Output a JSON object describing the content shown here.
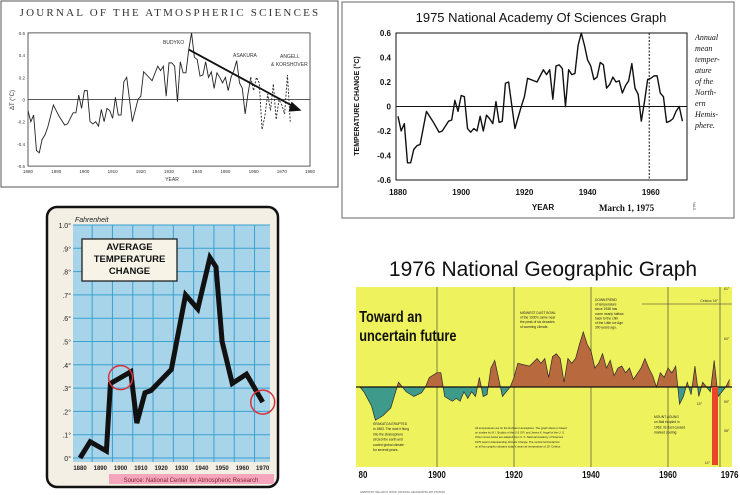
{
  "chart_data": [
    {
      "type": "line",
      "title": "JOURNAL OF THE ATMOSPHERIC SCIENCES",
      "xlabel": "YEAR",
      "ylabel": "ΔT (°C)",
      "xlim": [
        1880,
        1980
      ],
      "ylim": [
        -0.6,
        0.6
      ],
      "xticks": [
        "1880",
        "1890",
        "1900",
        "1910",
        "1920",
        "1930",
        "1940",
        "1950",
        "1960",
        "1970",
        "1980"
      ],
      "yticks": [
        "0.6",
        "0.4",
        "0.2",
        "0",
        "-0.2",
        "-0.4",
        "-0.6"
      ],
      "grid": false,
      "annotations": [
        "BUDYKO",
        "ASAKURA",
        "ANGELL",
        "& KORSHOVER"
      ],
      "trend_arrow": {
        "from": [
          1937,
          0.45
        ],
        "to": [
          1977,
          -0.1
        ]
      },
      "series": [
        {
          "style": "solid",
          "x": [
            1880,
            1881,
            1882,
            1883,
            1884,
            1885,
            1886,
            1887,
            1889,
            1891,
            1893,
            1894,
            1896,
            1897,
            1898,
            1899,
            1900,
            1901,
            1902,
            1903,
            1904,
            1905,
            1906,
            1907,
            1908,
            1909,
            1910,
            1911,
            1912,
            1913,
            1914,
            1915,
            1917,
            1919,
            1920,
            1921,
            1924,
            1926,
            1927,
            1928,
            1929,
            1930,
            1931,
            1932,
            1933,
            1934,
            1935,
            1936,
            1937,
            1938,
            1939,
            1940,
            1941,
            1942,
            1943,
            1944,
            1945,
            1946,
            1947,
            1948,
            1949,
            1950,
            1951,
            1952,
            1953,
            1954,
            1955,
            1956,
            1957,
            1958,
            1959
          ],
          "y": [
            -0.1,
            -0.2,
            -0.14,
            -0.46,
            -0.48,
            -0.36,
            -0.32,
            -0.25,
            -0.05,
            -0.15,
            -0.23,
            -0.22,
            -0.12,
            -0.12,
            0.04,
            -0.08,
            0.08,
            0.08,
            -0.2,
            -0.22,
            -0.2,
            -0.24,
            -0.09,
            -0.2,
            -0.08,
            -0.1,
            -0.17,
            0.02,
            -0.14,
            -0.14,
            0.16,
            0.2,
            -0.2,
            0.0,
            0.03,
            0.25,
            0.17,
            0.3,
            0.26,
            0.3,
            0.03,
            0.33,
            0.33,
            0.3,
            -0.02,
            0.34,
            0.24,
            0.24,
            0.45,
            0.6,
            0.38,
            0.36,
            0.21,
            0.22,
            0.34,
            0.2,
            0.25,
            0.1,
            0.24,
            0.2,
            0.15,
            0.2,
            0.08,
            0.2,
            0.26,
            0.35,
            0.15,
            0.1,
            -0.13,
            0.05,
            0.2
          ]
        },
        {
          "style": "dashed",
          "x": [
            1959,
            1960,
            1961,
            1962,
            1963,
            1964,
            1965,
            1966,
            1967,
            1968,
            1969,
            1970,
            1971,
            1972,
            1973
          ],
          "y": [
            0.2,
            0.08,
            0.2,
            0.15,
            -0.27,
            -0.15,
            0.05,
            -0.1,
            0.14,
            -0.18,
            0.0,
            -0.05,
            -0.13,
            0.22,
            -0.2
          ]
        }
      ]
    },
    {
      "type": "line",
      "title": "1975 National Academy Of Sciences Graph",
      "xlabel": "YEAR",
      "ylabel": "TEMPERATURE CHANGE (°C)",
      "xlim": [
        1880,
        1970
      ],
      "ylim": [
        -0.6,
        0.6
      ],
      "xticks": [
        "1880",
        "1900",
        "1920",
        "1940",
        "1960"
      ],
      "yticks": [
        "0.6",
        "0.4",
        "0.2",
        "0",
        "-0.2",
        "-0.4",
        "-0.6"
      ],
      "grid": false,
      "side_note": [
        "Annual",
        "mean",
        "temper-",
        "ature",
        "of the",
        "North-",
        "ern",
        "Hemis-",
        "phere."
      ],
      "date_note": "March 1, 1975",
      "credit": "NAS",
      "marker_line_year": 1959.5,
      "series": [
        {
          "x": [
            1880,
            1881,
            1882,
            1883,
            1884,
            1885,
            1886,
            1887,
            1889,
            1891,
            1893,
            1894,
            1896,
            1897,
            1898,
            1899,
            1900,
            1901,
            1902,
            1903,
            1904,
            1905,
            1906,
            1907,
            1908,
            1909,
            1910,
            1911,
            1912,
            1913,
            1914,
            1915,
            1917,
            1919,
            1920,
            1921,
            1924,
            1926,
            1927,
            1928,
            1929,
            1930,
            1931,
            1932,
            1933,
            1934,
            1935,
            1936,
            1937,
            1938,
            1939,
            1940,
            1941,
            1942,
            1943,
            1944,
            1945,
            1946,
            1947,
            1948,
            1949,
            1950,
            1951,
            1952,
            1953,
            1954,
            1955,
            1956,
            1957,
            1958,
            1959,
            1960,
            1961,
            1962,
            1963,
            1964,
            1965,
            1966,
            1967,
            1968,
            1969,
            1970
          ],
          "y": [
            -0.08,
            -0.2,
            -0.14,
            -0.46,
            -0.46,
            -0.35,
            -0.32,
            -0.31,
            -0.04,
            -0.12,
            -0.21,
            -0.2,
            -0.12,
            -0.11,
            0.05,
            -0.04,
            0.09,
            0.08,
            -0.18,
            -0.21,
            -0.18,
            -0.2,
            -0.08,
            -0.2,
            -0.07,
            -0.1,
            -0.14,
            0.04,
            -0.13,
            -0.12,
            0.19,
            0.2,
            -0.18,
            0.0,
            0.08,
            0.23,
            0.2,
            0.3,
            0.26,
            0.3,
            0.06,
            0.33,
            0.34,
            0.31,
            0.0,
            0.3,
            0.26,
            0.27,
            0.5,
            0.6,
            0.5,
            0.38,
            0.33,
            0.22,
            0.24,
            0.36,
            0.34,
            0.15,
            0.18,
            0.24,
            0.2,
            0.21,
            0.11,
            0.17,
            0.21,
            0.35,
            0.15,
            0.1,
            -0.12,
            0.04,
            0.22,
            0.23,
            0.25,
            0.25,
            0.11,
            0.08,
            -0.13,
            -0.12,
            -0.1,
            -0.04,
            0.0,
            -0.12
          ]
        }
      ]
    },
    {
      "type": "line",
      "title": "AVERAGE TEMPERATURE CHANGE",
      "ylabel": "Fahrenheit",
      "xlim": [
        1880,
        1970
      ],
      "ylim": [
        0,
        1.0
      ],
      "xticks": [
        "1880",
        "1890",
        "1900",
        "1910",
        "1920",
        "1930",
        "1940",
        "1950",
        "1960",
        "1970"
      ],
      "yticks": [
        "1.0°",
        ".9°",
        ".8°",
        ".7°",
        ".6°",
        ".5°",
        ".4°",
        ".3°",
        ".2°",
        ".1°",
        "0°"
      ],
      "grid": true,
      "source": "Source: National Center for Atmospheric Research",
      "highlight_circles_years": [
        1900,
        1970
      ],
      "colors": {
        "background": "#a8d4ea",
        "grid": "#3aa0d0",
        "line": "#111111",
        "circle": "#d8323a",
        "source_bg": "#f3a6bc"
      },
      "series": [
        {
          "x": [
            1880,
            1885,
            1893,
            1895,
            1905,
            1908,
            1912,
            1915,
            1925,
            1932,
            1938,
            1944,
            1947,
            1950,
            1955,
            1962,
            1970
          ],
          "y": [
            0.0,
            0.07,
            0.03,
            0.32,
            0.37,
            0.15,
            0.28,
            0.29,
            0.38,
            0.7,
            0.64,
            0.86,
            0.82,
            0.5,
            0.32,
            0.36,
            0.24
          ]
        }
      ]
    },
    {
      "type": "area",
      "title": "1976 National Geographic Graph",
      "heading": [
        "Toward an",
        "uncertain future"
      ],
      "xlim": [
        1880,
        1976
      ],
      "xticks": [
        "80",
        "1900",
        "1920",
        "1940",
        "1960",
        "1976"
      ],
      "celsius_ticks": [
        "Celsius 16°",
        "15°",
        "14°"
      ],
      "fahrenheit_ticks": [
        "61°",
        "60°",
        "59°",
        "58°"
      ],
      "baseline_celsius": 15,
      "notes": {
        "dust_bowl": [
          "MIDWEST DUST BOWL",
          "of the 1930's came near",
          "the peak of six decades",
          "of warming climate."
        ],
        "downtrend": [
          "DOWNTREND",
          "of temperature",
          "since 1938 has",
          "come nearly halfwa",
          "back to the chill",
          "of the Little Ice Age",
          "300 years ago."
        ],
        "krakatoa": [
          "KRAKATOA ERUPTED",
          "in 1883. The dust it flung",
          "into the stratosphere",
          "circled the earth and",
          "cooled global climate",
          "for several years."
        ],
        "agung": [
          "MOUNT AGUNG",
          "on Bali erupted in",
          "1963; its dust caused",
          "marked cooling."
        ],
        "footnote": [
          "All temperatures are for the Northern Hemisphere. The graph above is based",
          "on studies by M. I. Budyko of the U.S.S.R. and James K. Angell of the U. S.",
          "Other curves below are adapted from U. S. National Academy of Sciences",
          "1975 report Understanding Climatic Change. The central horizontal line",
          "on all four graphs indicates today's mean air temperature of 15° Celsius."
        ],
        "credit": "GRAPHS BY WILLIAM H. BOND, NATIONAL GEOGRAPHIC ART DIVISION"
      },
      "colors": {
        "background": "#eef25c",
        "above": "#b8693e",
        "below": "#3e9b8c",
        "thermometer": "#e8452a"
      },
      "series": [
        {
          "x": [
            1880,
            1881,
            1883,
            1884,
            1886,
            1888,
            1890,
            1892,
            1894,
            1896,
            1897,
            1898,
            1900,
            1901,
            1902,
            1904,
            1905,
            1906,
            1907,
            1908,
            1909,
            1910,
            1911,
            1912,
            1913,
            1914,
            1915,
            1917,
            1919,
            1920,
            1921,
            1924,
            1926,
            1927,
            1928,
            1929,
            1930,
            1931,
            1932,
            1933,
            1934,
            1935,
            1936,
            1937,
            1938,
            1939,
            1940,
            1941,
            1942,
            1943,
            1944,
            1945,
            1946,
            1947,
            1948,
            1949,
            1950,
            1951,
            1953,
            1954,
            1955,
            1956,
            1957,
            1958,
            1959,
            1960,
            1961,
            1962,
            1963,
            1964,
            1965,
            1966,
            1967,
            1968,
            1969,
            1970,
            1971,
            1972,
            1973,
            1974,
            1975,
            1976
          ],
          "y": [
            0.0,
            -0.05,
            -0.2,
            -0.35,
            -0.3,
            -0.22,
            0.05,
            -0.05,
            -0.1,
            -0.06,
            0.0,
            0.1,
            0.15,
            0.15,
            -0.1,
            -0.15,
            -0.12,
            -0.15,
            -0.05,
            -0.12,
            -0.05,
            -0.1,
            0.1,
            -0.1,
            -0.08,
            0.2,
            0.28,
            -0.1,
            0.0,
            0.1,
            0.25,
            0.22,
            0.3,
            0.25,
            0.3,
            0.1,
            0.32,
            0.35,
            0.3,
            0.05,
            0.3,
            0.25,
            0.3,
            0.45,
            0.58,
            0.45,
            0.38,
            0.2,
            0.25,
            0.35,
            0.2,
            0.28,
            0.12,
            0.2,
            0.22,
            0.15,
            0.2,
            0.08,
            0.2,
            0.3,
            0.2,
            0.12,
            0.0,
            0.15,
            0.1,
            0.2,
            0.15,
            0.22,
            -0.18,
            -0.1,
            0.05,
            -0.08,
            0.22,
            -0.1,
            0.05,
            0.0,
            -0.05,
            0.28,
            -0.1,
            -0.05,
            0.0,
            0.08
          ]
        }
      ]
    }
  ]
}
